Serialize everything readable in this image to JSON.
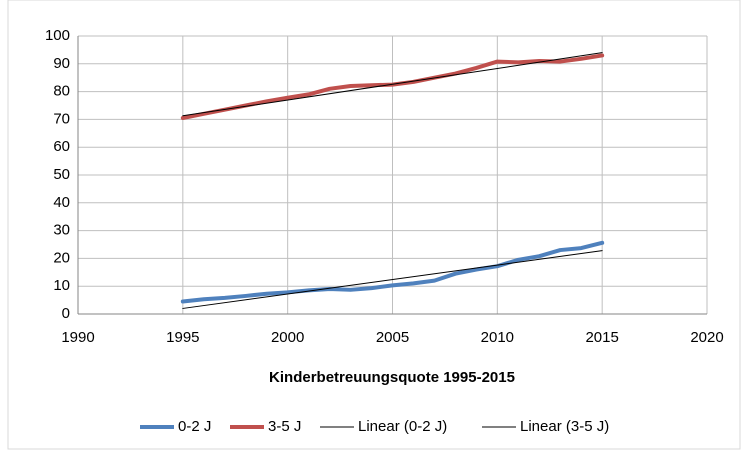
{
  "chart_data": {
    "type": "line",
    "title": "Kinderbetreuungsquote 1995-2015",
    "xlim": [
      1990,
      2020
    ],
    "xticks": [
      1990,
      1995,
      2000,
      2005,
      2010,
      2015,
      2020
    ],
    "ylim": [
      0,
      100
    ],
    "yticks": [
      0,
      10,
      20,
      30,
      40,
      50,
      60,
      70,
      80,
      90,
      100
    ],
    "grid": true,
    "legend": "bottom",
    "series": [
      {
        "name": "0-2 J",
        "color": "#4f81bd",
        "width": 4,
        "x": [
          1995,
          1996,
          1997,
          1998,
          1999,
          2000,
          2001,
          2002,
          2003,
          2004,
          2005,
          2006,
          2007,
          2008,
          2009,
          2010,
          2011,
          2012,
          2013,
          2014,
          2015
        ],
        "values": [
          4.5,
          5.3,
          5.8,
          6.5,
          7.3,
          7.8,
          8.5,
          9.0,
          8.7,
          9.3,
          10.3,
          11.0,
          12.0,
          14.5,
          16.0,
          17.2,
          19.5,
          20.8,
          23.0,
          23.7,
          25.6
        ]
      },
      {
        "name": "3-5 J",
        "color": "#c0504d",
        "width": 4,
        "x": [
          1995,
          1996,
          1997,
          1998,
          1999,
          2000,
          2001,
          2002,
          2003,
          2004,
          2005,
          2006,
          2007,
          2008,
          2009,
          2010,
          2011,
          2012,
          2013,
          2014,
          2015
        ],
        "values": [
          70.5,
          72.0,
          73.5,
          75.0,
          76.5,
          77.8,
          79.0,
          81.0,
          82.0,
          82.3,
          82.5,
          83.5,
          85.0,
          86.5,
          88.5,
          90.8,
          90.5,
          91.0,
          90.8,
          91.8,
          93.0
        ]
      },
      {
        "name": "Linear (0-2 J)",
        "color": "#000000",
        "width": 1,
        "x": [
          1995,
          2015
        ],
        "values": [
          2.0,
          22.8
        ]
      },
      {
        "name": "Linear (3-5 J)",
        "color": "#000000",
        "width": 1,
        "x": [
          1995,
          2015
        ],
        "values": [
          71.3,
          94.0
        ]
      }
    ]
  }
}
